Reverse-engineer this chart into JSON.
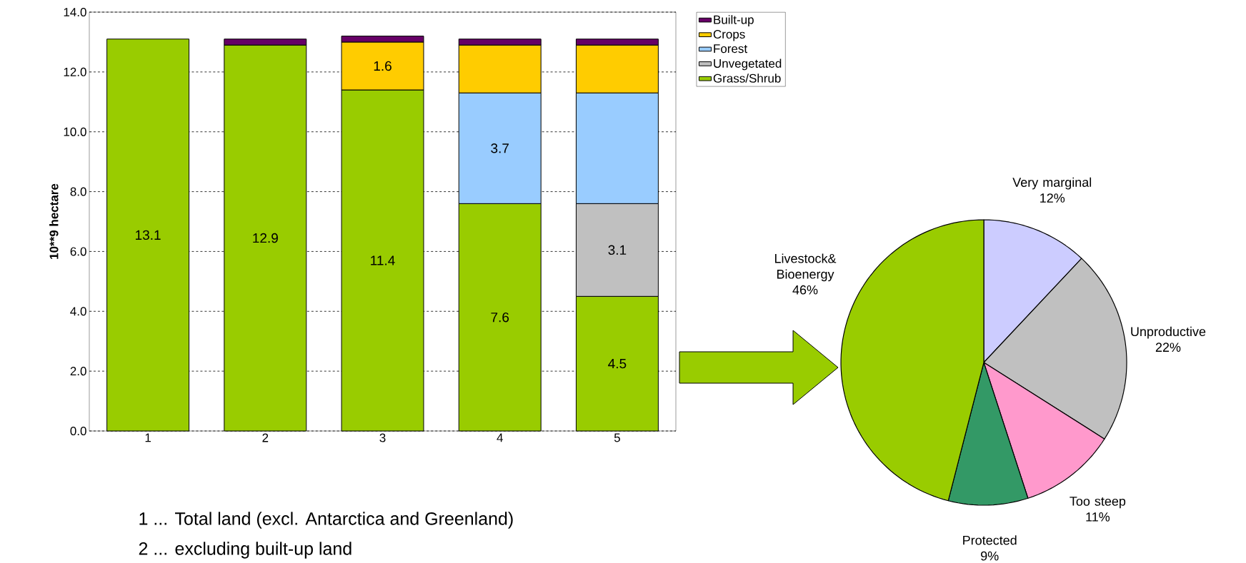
{
  "chart_data": [
    {
      "type": "bar",
      "stacked": true,
      "ylabel": "10**9 hectare",
      "categories": [
        "1",
        "2",
        "3",
        "4",
        "5"
      ],
      "ylim": [
        0,
        14
      ],
      "yticks": [
        {
          "value": 0,
          "label": "0.0"
        },
        {
          "value": 2,
          "label": "2.0"
        },
        {
          "value": 4,
          "label": "4.0"
        },
        {
          "value": 6,
          "label": "6.0"
        },
        {
          "value": 8,
          "label": "8.0"
        },
        {
          "value": 10,
          "label": "10.0"
        },
        {
          "value": 12,
          "label": "12.0"
        },
        {
          "value": 14,
          "label": "14.0"
        }
      ],
      "grid": "y",
      "legend": "right",
      "series": [
        {
          "name": "Grass/Shrub",
          "color": "#99cc00",
          "values": [
            13.1,
            12.9,
            11.4,
            7.6,
            4.5
          ],
          "value_labels": [
            "13.1",
            "12.9",
            "11.4",
            "7.6",
            "4.5"
          ]
        },
        {
          "name": "Unvegetated",
          "color": "#c0c0c0",
          "values": [
            null,
            null,
            null,
            null,
            3.1
          ],
          "value_labels": [
            null,
            null,
            null,
            null,
            "3.1"
          ]
        },
        {
          "name": "Forest",
          "color": "#99ccff",
          "values": [
            null,
            null,
            null,
            3.7,
            3.7
          ],
          "value_labels": [
            null,
            null,
            null,
            "3.7",
            null
          ]
        },
        {
          "name": "Crops",
          "color": "#ffcc00",
          "values": [
            null,
            null,
            1.6,
            1.6,
            1.6
          ],
          "value_labels": [
            null,
            null,
            "1.6",
            null,
            null
          ]
        },
        {
          "name": "Built-up",
          "color": "#660066",
          "values": [
            null,
            0.2,
            0.2,
            0.2,
            0.2
          ]
        }
      ],
      "annotations": [
        "1 ...  Total land (excl. Antarctica and Greenland)",
        "2 ...  excluding built-up land"
      ]
    },
    {
      "type": "pie",
      "categories": [
        "Very marginal",
        "Unproductive",
        "Too steep",
        "Protected",
        "Livestock& Bioenergy"
      ],
      "values": [
        12,
        22,
        11,
        9,
        46
      ],
      "value_labels": [
        "12%",
        "22%",
        "11%",
        "9%",
        "46%"
      ],
      "colors": [
        "#ccccff",
        "#c0c0c0",
        "#ff99cc",
        "#339966",
        "#99cc00"
      ]
    }
  ]
}
